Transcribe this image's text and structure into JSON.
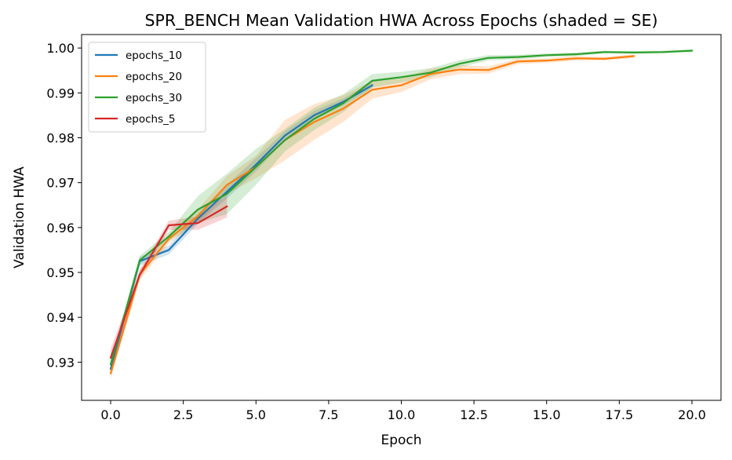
{
  "chart_data": {
    "type": "line",
    "title": "SPR_BENCH Mean Validation HWA Across Epochs (shaded = SE)",
    "xlabel": "Epoch",
    "ylabel": "Validation HWA",
    "xlim": [
      -1.0,
      21.0
    ],
    "ylim": [
      0.9215,
      1.003
    ],
    "xticks": [
      0.0,
      2.5,
      5.0,
      7.5,
      10.0,
      12.5,
      15.0,
      17.5,
      20.0
    ],
    "xtick_labels": [
      "0.0",
      "2.5",
      "5.0",
      "7.5",
      "10.0",
      "12.5",
      "15.0",
      "17.5",
      "20.0"
    ],
    "yticks": [
      0.93,
      0.94,
      0.95,
      0.96,
      0.97,
      0.98,
      0.99,
      1.0
    ],
    "ytick_labels": [
      "0.93",
      "0.94",
      "0.95",
      "0.96",
      "0.97",
      "0.98",
      "0.99",
      "1.00"
    ],
    "grid": false,
    "legend_position": "top-left",
    "series": [
      {
        "name": "epochs_10",
        "color": "#1f77b4",
        "x": [
          0,
          1,
          2,
          3,
          4,
          5,
          6,
          7,
          8,
          9
        ],
        "y": [
          0.9285,
          0.9525,
          0.955,
          0.962,
          0.968,
          0.974,
          0.9805,
          0.985,
          0.988,
          0.9917
        ],
        "se": [
          0.0015,
          0.001,
          0.001,
          0.0012,
          0.0015,
          0.0015,
          0.001,
          0.001,
          0.0008,
          0.0006
        ]
      },
      {
        "name": "epochs_20",
        "color": "#ff7f0e",
        "x": [
          0,
          1,
          2,
          3,
          4,
          5,
          6,
          7,
          8,
          9,
          10,
          11,
          12,
          13,
          14,
          15,
          16,
          17,
          18
        ],
        "y": [
          0.9275,
          0.9495,
          0.9575,
          0.9625,
          0.9695,
          0.9735,
          0.9795,
          0.9835,
          0.9865,
          0.9907,
          0.9917,
          0.9942,
          0.9952,
          0.9951,
          0.997,
          0.9972,
          0.9977,
          0.9976,
          0.9982
        ],
        "se": [
          0.0012,
          0.0012,
          0.001,
          0.0015,
          0.002,
          0.0025,
          0.0045,
          0.004,
          0.003,
          0.002,
          0.0015,
          0.0012,
          0.001,
          0.0008,
          0.0006,
          0.0005,
          0.0005,
          0.0004,
          0.0004
        ]
      },
      {
        "name": "epochs_30",
        "color": "#2ca02c",
        "x": [
          0,
          1,
          2,
          3,
          4,
          5,
          6,
          7,
          8,
          9,
          10,
          11,
          12,
          13,
          14,
          15,
          16,
          17,
          18,
          19,
          20
        ],
        "y": [
          0.9295,
          0.9527,
          0.958,
          0.964,
          0.9675,
          0.9735,
          0.9795,
          0.9842,
          0.9877,
          0.9927,
          0.9935,
          0.9945,
          0.9965,
          0.9978,
          0.998,
          0.9984,
          0.9986,
          0.9991,
          0.999,
          0.9991,
          0.9994
        ],
        "se": [
          0.001,
          0.001,
          0.001,
          0.003,
          0.0045,
          0.004,
          0.0025,
          0.0025,
          0.002,
          0.0015,
          0.0012,
          0.001,
          0.0008,
          0.0006,
          0.0005,
          0.0004,
          0.0004,
          0.0003,
          0.0003,
          0.0003,
          0.0003
        ]
      },
      {
        "name": "epochs_5",
        "color": "#d62728",
        "x": [
          0,
          1,
          2,
          3,
          4
        ],
        "y": [
          0.931,
          0.9495,
          0.9605,
          0.961,
          0.9647
        ],
        "se": [
          0.002,
          0.001,
          0.001,
          0.0015,
          0.0025
        ]
      }
    ]
  }
}
